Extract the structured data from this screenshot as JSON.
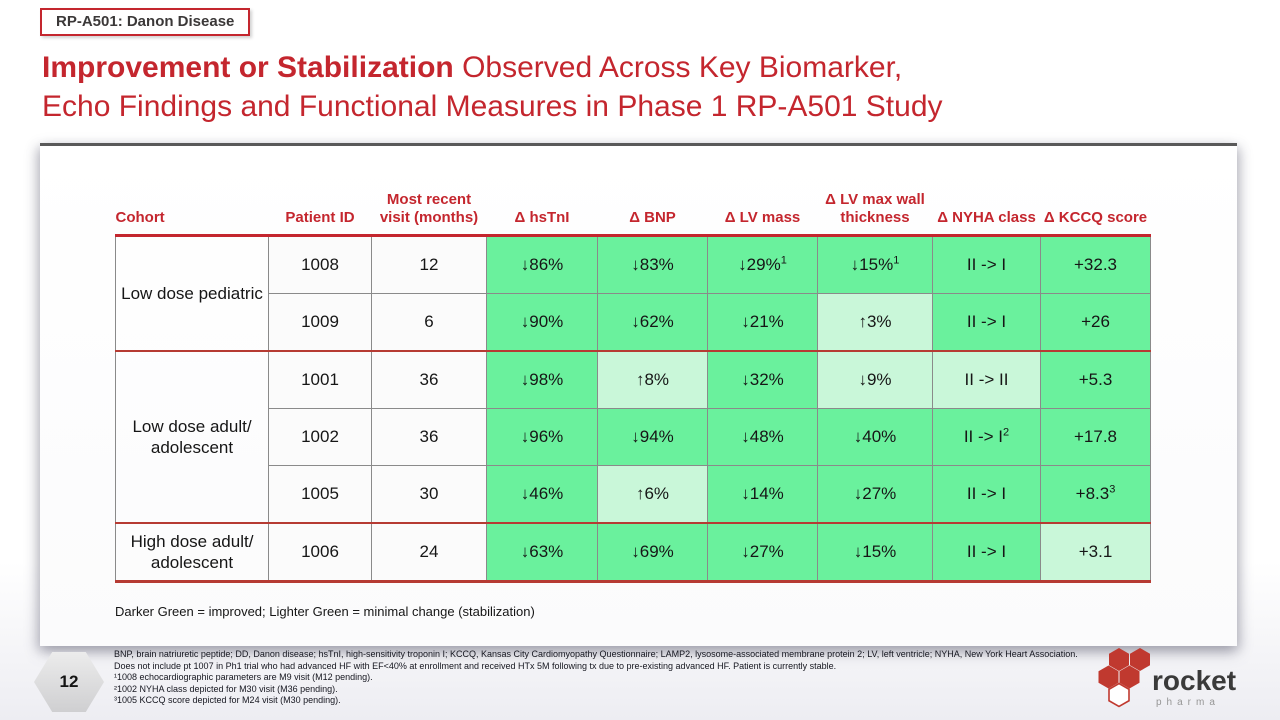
{
  "header": {
    "badge": "RP-A501: Danon Disease",
    "title_bold": "Improvement or Stabilization",
    "title_regular": " Observed Across Key Biomarker,",
    "title_line2": "Echo Findings and Functional Measures in Phase 1 RP-A501 Study"
  },
  "table": {
    "columns": [
      "Cohort",
      "Patient ID",
      "Most recent visit (months)",
      "Δ hsTnI",
      "Δ BNP",
      "Δ LV mass",
      "Δ LV max wall thickness",
      "Δ NYHA class",
      "Δ KCCQ score"
    ],
    "legend": "Darker Green = improved; Lighter Green = minimal change (stabilization)",
    "tone_colors": {
      "improved": "#6af19d",
      "stabilization": "#c9f7d9"
    },
    "groups": [
      {
        "cohort": "Low dose pediatric",
        "rows": [
          {
            "patient_id": "1008",
            "visit_months": "12",
            "cells": [
              {
                "t": "↓86%",
                "tone": "improved"
              },
              {
                "t": "↓83%",
                "tone": "improved"
              },
              {
                "t": "↓29%",
                "sup": "1",
                "tone": "improved"
              },
              {
                "t": "↓15%",
                "sup": "1",
                "tone": "improved"
              },
              {
                "t": "II -> I",
                "tone": "improved"
              },
              {
                "t": "+32.3",
                "tone": "improved"
              }
            ]
          },
          {
            "patient_id": "1009",
            "visit_months": "6",
            "cells": [
              {
                "t": "↓90%",
                "tone": "improved"
              },
              {
                "t": "↓62%",
                "tone": "improved"
              },
              {
                "t": "↓21%",
                "tone": "improved"
              },
              {
                "t": "↑3%",
                "tone": "stabilization"
              },
              {
                "t": "II -> I",
                "tone": "improved"
              },
              {
                "t": "+26",
                "tone": "improved"
              }
            ]
          }
        ]
      },
      {
        "cohort": "Low dose adult/ adolescent",
        "rows": [
          {
            "patient_id": "1001",
            "visit_months": "36",
            "cells": [
              {
                "t": "↓98%",
                "tone": "improved"
              },
              {
                "t": "↑8%",
                "tone": "stabilization"
              },
              {
                "t": "↓32%",
                "tone": "improved"
              },
              {
                "t": "↓9%",
                "tone": "stabilization"
              },
              {
                "t": "II -> II",
                "tone": "stabilization"
              },
              {
                "t": "+5.3",
                "tone": "improved"
              }
            ]
          },
          {
            "patient_id": "1002",
            "visit_months": "36",
            "cells": [
              {
                "t": "↓96%",
                "tone": "improved"
              },
              {
                "t": "↓94%",
                "tone": "improved"
              },
              {
                "t": "↓48%",
                "tone": "improved"
              },
              {
                "t": "↓40%",
                "tone": "improved"
              },
              {
                "t": "II -> I",
                "sup": "2",
                "tone": "improved"
              },
              {
                "t": "+17.8",
                "tone": "improved"
              }
            ]
          },
          {
            "patient_id": "1005",
            "visit_months": "30",
            "cells": [
              {
                "t": "↓46%",
                "tone": "improved"
              },
              {
                "t": "↑6%",
                "tone": "stabilization"
              },
              {
                "t": "↓14%",
                "tone": "improved"
              },
              {
                "t": "↓27%",
                "tone": "improved"
              },
              {
                "t": "II -> I",
                "tone": "improved"
              },
              {
                "t": "+8.3",
                "sup": "3",
                "tone": "improved"
              }
            ]
          }
        ]
      },
      {
        "cohort": "High dose adult/ adolescent",
        "rows": [
          {
            "patient_id": "1006",
            "visit_months": "24",
            "cells": [
              {
                "t": "↓63%",
                "tone": "improved"
              },
              {
                "t": "↓69%",
                "tone": "improved"
              },
              {
                "t": "↓27%",
                "tone": "improved"
              },
              {
                "t": "↓15%",
                "tone": "improved"
              },
              {
                "t": "II -> I",
                "tone": "improved"
              },
              {
                "t": "+3.1",
                "tone": "stabilization"
              }
            ]
          }
        ]
      }
    ]
  },
  "footnotes": {
    "abbreviations": "BNP, brain natriuretic peptide; DD, Danon disease; hsTnI, high-sensitivity troponin I; KCCQ, Kansas City Cardiomyopathy Questionnaire; LAMP2, lysosome-associated membrane protein 2; LV, left ventricle; NYHA, New York Heart Association. Does not include pt 1007 in Ph1 trial who had advanced HF with EF<40% at enrollment and received HTx 5M following tx due to pre-existing advanced HF. Patient is currently stable.",
    "sup1": "¹1008 echocardiographic parameters are M9 visit (M12 pending).",
    "sup2": "²1002 NYHA class depicted for M30 visit (M36 pending).",
    "sup3": "³1005 KCCQ score depicted for M24 visit (M30 pending)."
  },
  "footer": {
    "page_number": "12"
  },
  "logo": {
    "brand": "rocket",
    "sub": "pharma",
    "accent": "#c0392f"
  }
}
